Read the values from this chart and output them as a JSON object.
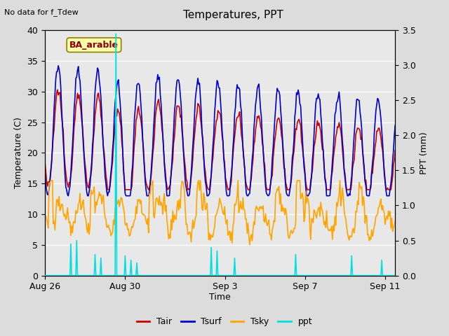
{
  "title": "Temperatures, PPT",
  "subtitle": "No data for f_Tdew",
  "xlabel": "Time",
  "ylabel_left": "Temperature (C)",
  "ylabel_right": "PPT (mm)",
  "annotation": "BA_arable",
  "xlim_days": [
    0,
    17.5
  ],
  "ylim_left": [
    0,
    40
  ],
  "ylim_right": [
    0,
    3.5
  ],
  "xtick_labels": [
    "Aug 26",
    "Aug 30",
    "Sep 3",
    "Sep 7",
    "Sep 11"
  ],
  "xtick_positions": [
    0,
    4,
    9,
    13,
    17
  ],
  "bg_color": "#dcdcdc",
  "plot_bg": "#e8e8e8",
  "colors": {
    "Tair": "#cc0000",
    "Tsurf": "#0000cc",
    "Tsky": "#ffa500",
    "ppt": "#00e0e0"
  },
  "line_widths": {
    "Tair": 1.2,
    "Tsurf": 1.2,
    "Tsky": 1.2,
    "ppt": 1.2
  }
}
